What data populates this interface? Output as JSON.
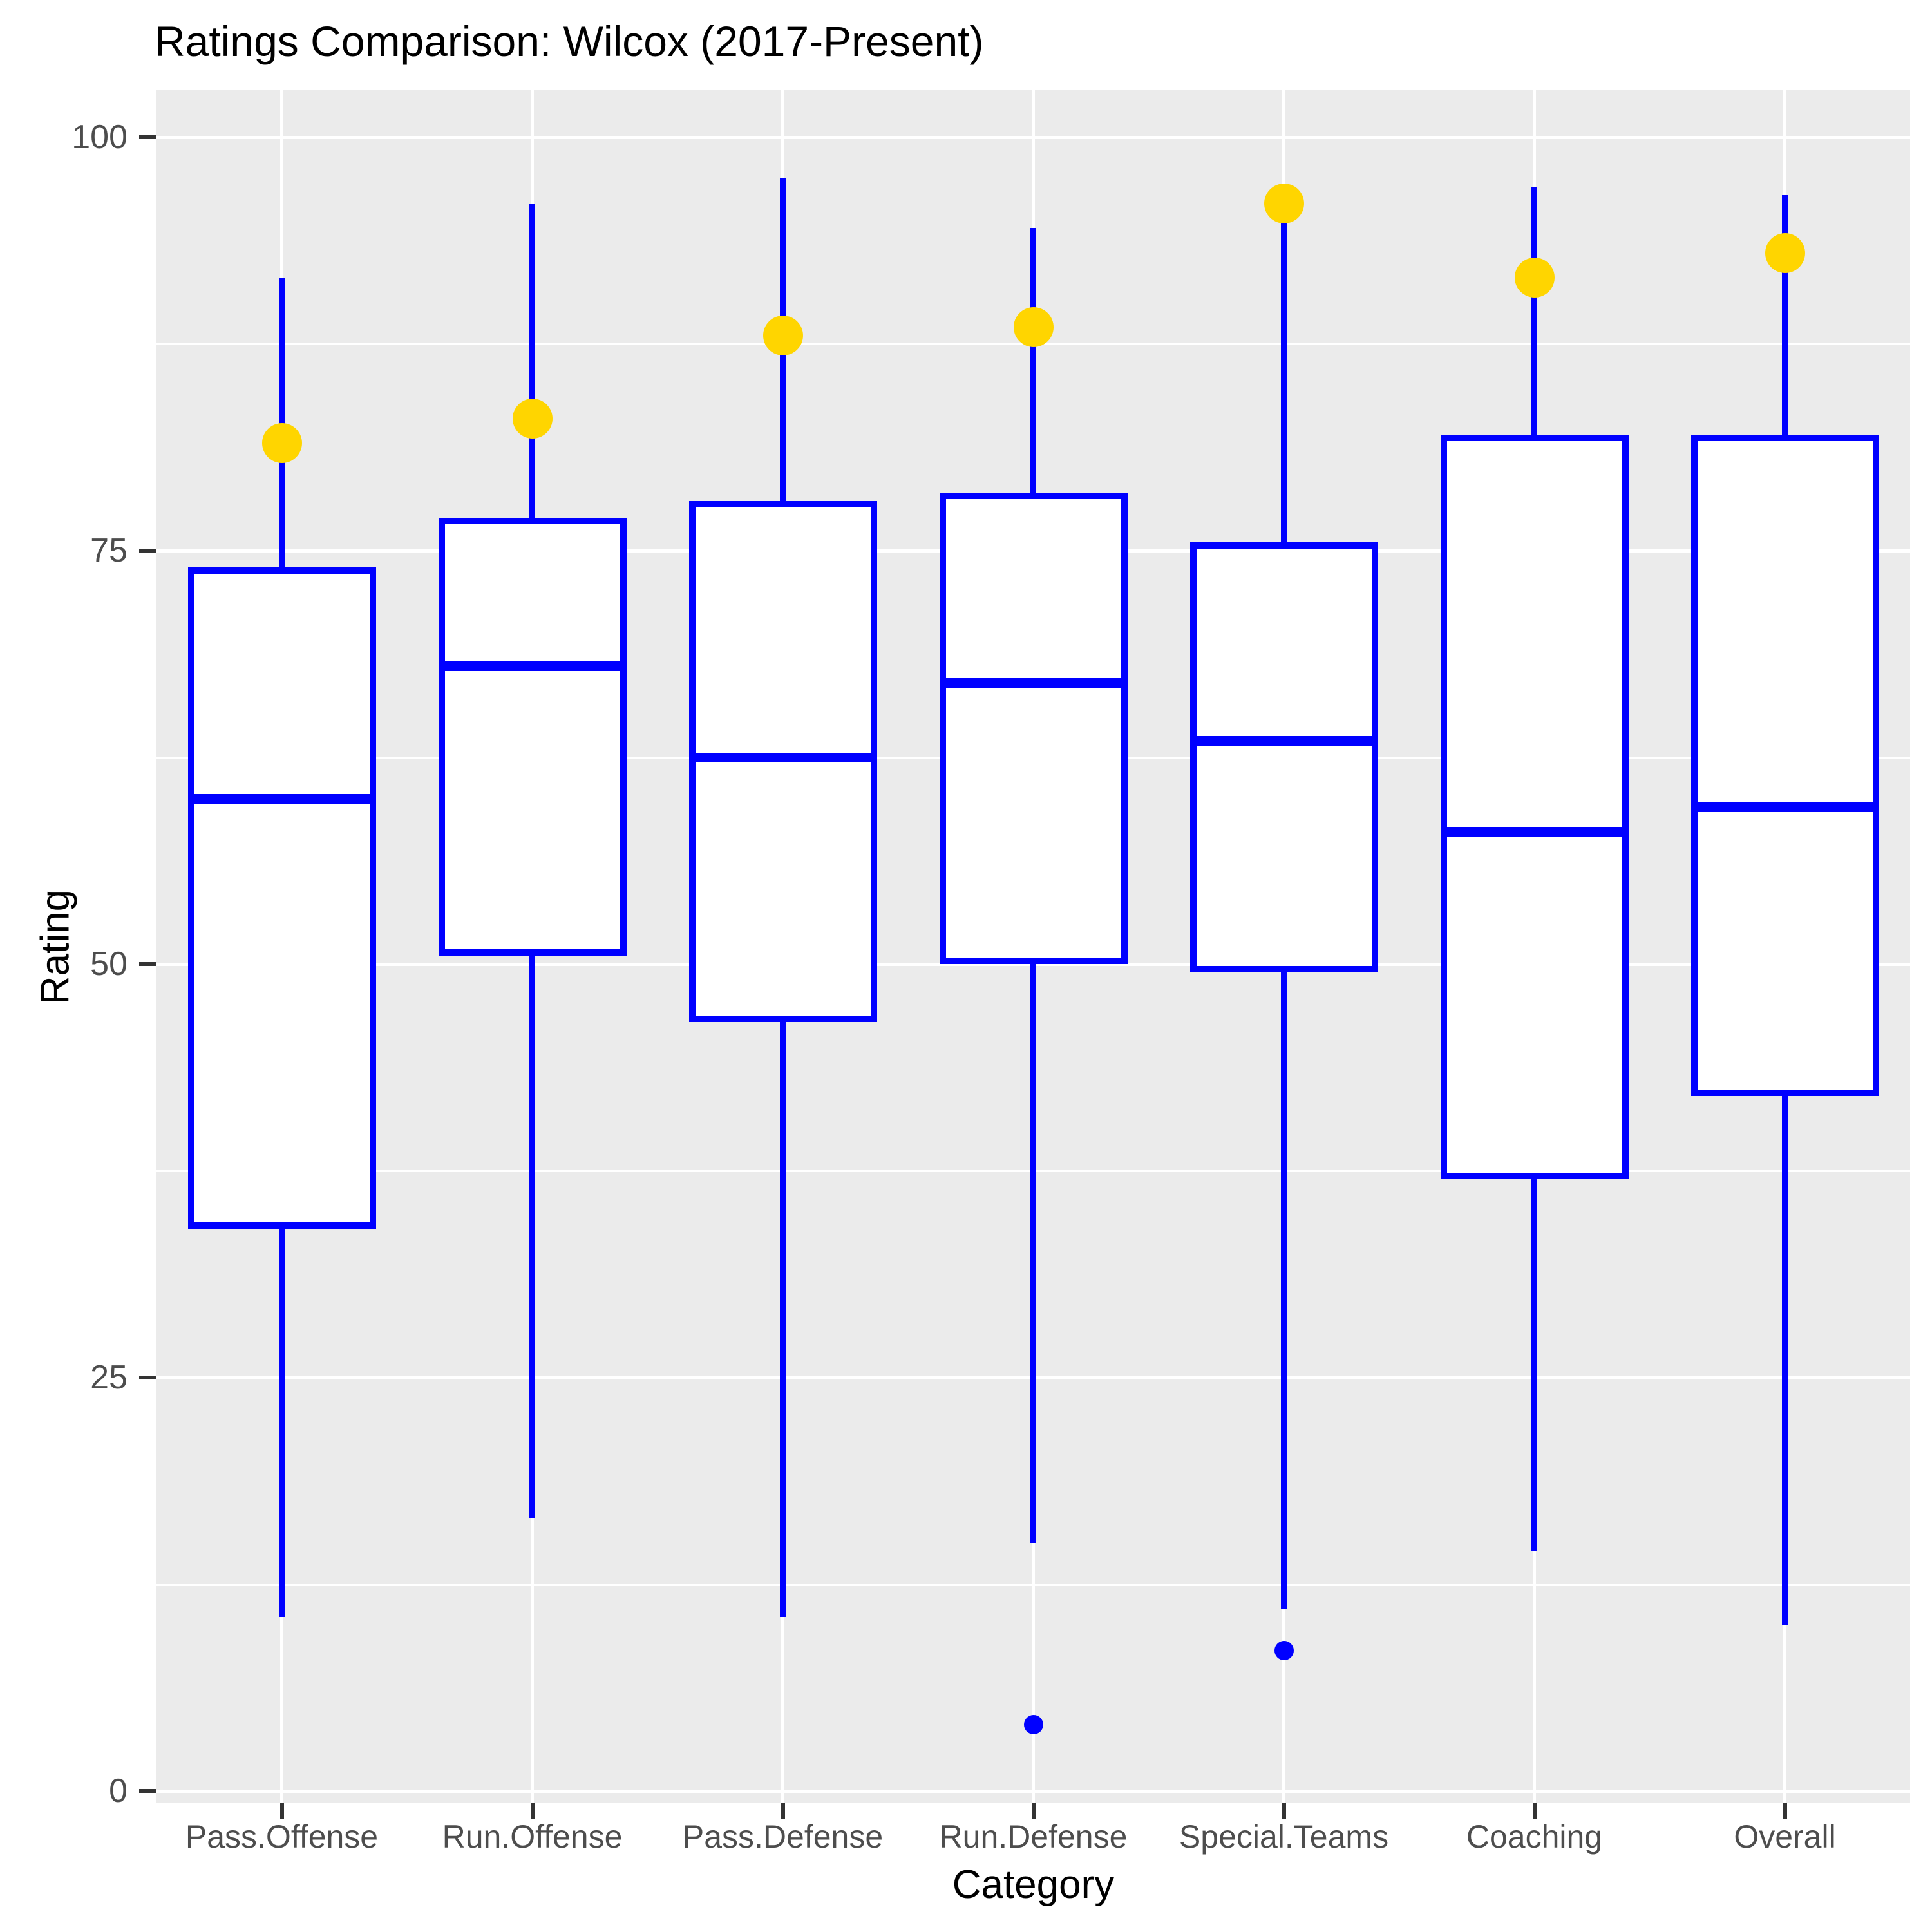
{
  "title": "Ratings Comparison: Wilcox (2017-Present)",
  "chart_data": {
    "type": "boxplot",
    "title": "Ratings Comparison: Wilcox (2017-Present)",
    "xlabel": "Category",
    "ylabel": "Rating",
    "ylim": [
      0,
      100
    ],
    "yticks": [
      0,
      25,
      50,
      75,
      100
    ],
    "grid": "horizontal major+minor and vertical major white gridlines on gray panel",
    "legend_position": "none",
    "categories": [
      "Pass.Offense",
      "Run.Offense",
      "Pass.Defense",
      "Run.Defense",
      "Special.Teams",
      "Coaching",
      "Overall"
    ],
    "series": [
      {
        "category": "Pass.Offense",
        "whisker_low": 10.5,
        "q1": 34,
        "median": 60,
        "q3": 74,
        "whisker_high": 91.5,
        "mean_point": 81.5,
        "outliers": []
      },
      {
        "category": "Run.Offense",
        "whisker_low": 16.5,
        "q1": 50.5,
        "median": 68,
        "q3": 77,
        "whisker_high": 96,
        "mean_point": 83,
        "outliers": []
      },
      {
        "category": "Pass.Defense",
        "whisker_low": 10.5,
        "q1": 46.5,
        "median": 62.5,
        "q3": 78,
        "whisker_high": 97.5,
        "mean_point": 88,
        "outliers": []
      },
      {
        "category": "Run.Defense",
        "whisker_low": 15,
        "q1": 50,
        "median": 67,
        "q3": 78.5,
        "whisker_high": 94.5,
        "mean_point": 88.5,
        "outliers": [
          4
        ]
      },
      {
        "category": "Special.Teams",
        "whisker_low": 11,
        "q1": 49.5,
        "median": 63.5,
        "q3": 75.5,
        "whisker_high": 95,
        "mean_point": 96,
        "outliers": [
          8.5
        ]
      },
      {
        "category": "Coaching",
        "whisker_low": 14.5,
        "q1": 37,
        "median": 58,
        "q3": 82,
        "whisker_high": 97,
        "mean_point": 91.5,
        "outliers": []
      },
      {
        "category": "Overall",
        "whisker_low": 10,
        "q1": 42,
        "median": 59.5,
        "q3": 82,
        "whisker_high": 96.5,
        "mean_point": 93,
        "outliers": []
      }
    ],
    "colors": {
      "box_stroke": "#0000FF",
      "box_fill": "#FFFFFF",
      "whisker": "#0000FF",
      "median": "#0000FF",
      "mean_point": "#FFD500",
      "outlier": "#0000FF",
      "panel_bg": "#EBEBEB",
      "gridline": "#FFFFFF",
      "tick_label": "#4D4D4D",
      "axis_title": "#000000",
      "title": "#000000"
    }
  }
}
